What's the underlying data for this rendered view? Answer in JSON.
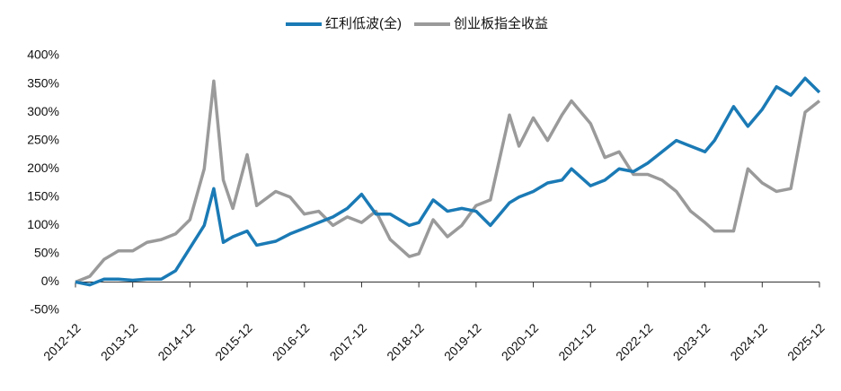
{
  "chart_data": {
    "type": "line",
    "x": [
      "2012-12",
      "2013-03",
      "2013-06",
      "2013-09",
      "2013-12",
      "2014-03",
      "2014-06",
      "2014-09",
      "2014-12",
      "2015-03",
      "2015-05",
      "2015-07",
      "2015-09",
      "2015-12",
      "2016-02",
      "2016-06",
      "2016-09",
      "2016-12",
      "2017-03",
      "2017-06",
      "2017-09",
      "2017-12",
      "2018-03",
      "2018-06",
      "2018-10",
      "2018-12",
      "2019-03",
      "2019-06",
      "2019-09",
      "2019-12",
      "2020-03",
      "2020-07",
      "2020-09",
      "2020-12",
      "2021-03",
      "2021-06",
      "2021-08",
      "2021-12",
      "2022-03",
      "2022-06",
      "2022-09",
      "2022-12",
      "2023-03",
      "2023-06",
      "2023-09",
      "2023-12",
      "2024-02",
      "2024-06",
      "2024-09",
      "2024-12",
      "2025-03",
      "2025-06",
      "2025-09",
      "2025-12"
    ],
    "series": [
      {
        "name": "红利低波(全)",
        "color": "#1a7ab5",
        "values": [
          0,
          -5,
          5,
          5,
          3,
          5,
          5,
          20,
          60,
          100,
          165,
          70,
          80,
          90,
          65,
          72,
          85,
          95,
          105,
          115,
          130,
          155,
          120,
          120,
          100,
          105,
          145,
          125,
          130,
          125,
          100,
          140,
          150,
          160,
          175,
          180,
          200,
          170,
          180,
          200,
          195,
          210,
          230,
          250,
          240,
          230,
          250,
          310,
          275,
          305,
          345,
          330,
          360,
          335
        ]
      },
      {
        "name": "创业板指全收益",
        "color": "#9a9a9a",
        "values": [
          0,
          10,
          40,
          55,
          55,
          70,
          75,
          85,
          110,
          200,
          355,
          180,
          130,
          225,
          135,
          160,
          150,
          120,
          125,
          100,
          115,
          105,
          125,
          75,
          45,
          50,
          110,
          80,
          100,
          135,
          145,
          295,
          240,
          290,
          250,
          295,
          320,
          280,
          220,
          230,
          190,
          190,
          180,
          160,
          125,
          105,
          90,
          90,
          200,
          175,
          160,
          165,
          300,
          320
        ]
      }
    ],
    "xlim": [
      "2012-12",
      "2025-12"
    ],
    "xticks": [
      "2012-12",
      "2013-12",
      "2014-12",
      "2015-12",
      "2016-12",
      "2017-12",
      "2018-12",
      "2019-12",
      "2020-12",
      "2021-12",
      "2022-12",
      "2023-12",
      "2024-12",
      "2025-12"
    ],
    "ylim": [
      -50,
      400
    ],
    "yticks": [
      {
        "value": -50,
        "label": "-50%"
      },
      {
        "value": 0,
        "label": "0%"
      },
      {
        "value": 50,
        "label": "50%"
      },
      {
        "value": 100,
        "label": "100%"
      },
      {
        "value": 150,
        "label": "150%"
      },
      {
        "value": 200,
        "label": "200%"
      },
      {
        "value": 250,
        "label": "250%"
      },
      {
        "value": 300,
        "label": "300%"
      },
      {
        "value": 350,
        "label": "350%"
      },
      {
        "value": 400,
        "label": "400%"
      }
    ],
    "legend": "top"
  }
}
